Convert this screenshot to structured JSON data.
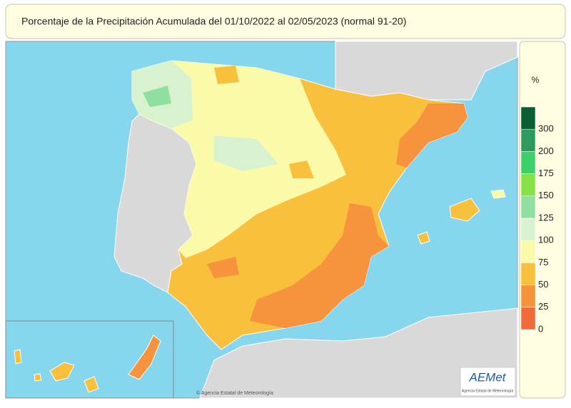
{
  "header": {
    "title": "Porcentaje de la Precipitación Acumulada del 01/10/2022 al 02/05/2023 (normal 91-20)"
  },
  "legend": {
    "unit": "%",
    "ticks": [
      300,
      200,
      175,
      150,
      125,
      100,
      75,
      50,
      25,
      0
    ],
    "colors": [
      "#0b5e34",
      "#2f9a5e",
      "#3ccf6a",
      "#86e048",
      "#8fe0a0",
      "#d8f2d0",
      "#fafaa8",
      "#f9c03e",
      "#f7933c",
      "#f26a3a"
    ]
  },
  "logo": {
    "name": "AEMet",
    "subtitle": "Agencia Estatal de Meteorología"
  },
  "credit": "© Agencia Estatal de Meteorología"
}
